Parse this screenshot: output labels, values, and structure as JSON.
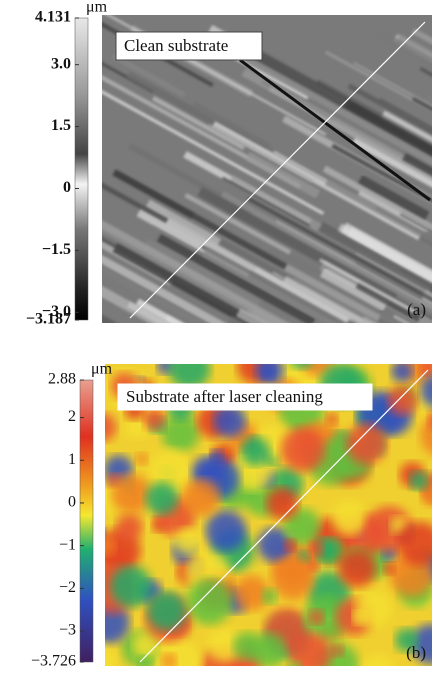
{
  "panels": [
    {
      "label": "Clean substrate",
      "tag": "(a)",
      "unit": "μm",
      "colormap": "gray",
      "ylim": [
        -3.187,
        4.131
      ],
      "yticks": [
        4.131,
        {
          "value": 3,
          "label": "3.0"
        },
        1.5,
        0,
        {
          "value": -1.5,
          "label": "−1.5"
        },
        {
          "value": -3,
          "label": "−3.0"
        },
        {
          "value": -3.187,
          "label": "−3.187"
        }
      ]
    },
    {
      "label": "Substrate after laser cleaning",
      "tag": "(b)",
      "unit": "μm",
      "colormap": "rainbow",
      "ylim": [
        -3.726,
        2.88
      ],
      "yticks": [
        2.88,
        2,
        1,
        0,
        {
          "value": -1,
          "label": "−1"
        },
        {
          "value": -2,
          "label": "−2"
        },
        {
          "value": -3,
          "label": "−3"
        },
        {
          "value": -3.726,
          "label": "−3.726"
        }
      ]
    }
  ]
}
